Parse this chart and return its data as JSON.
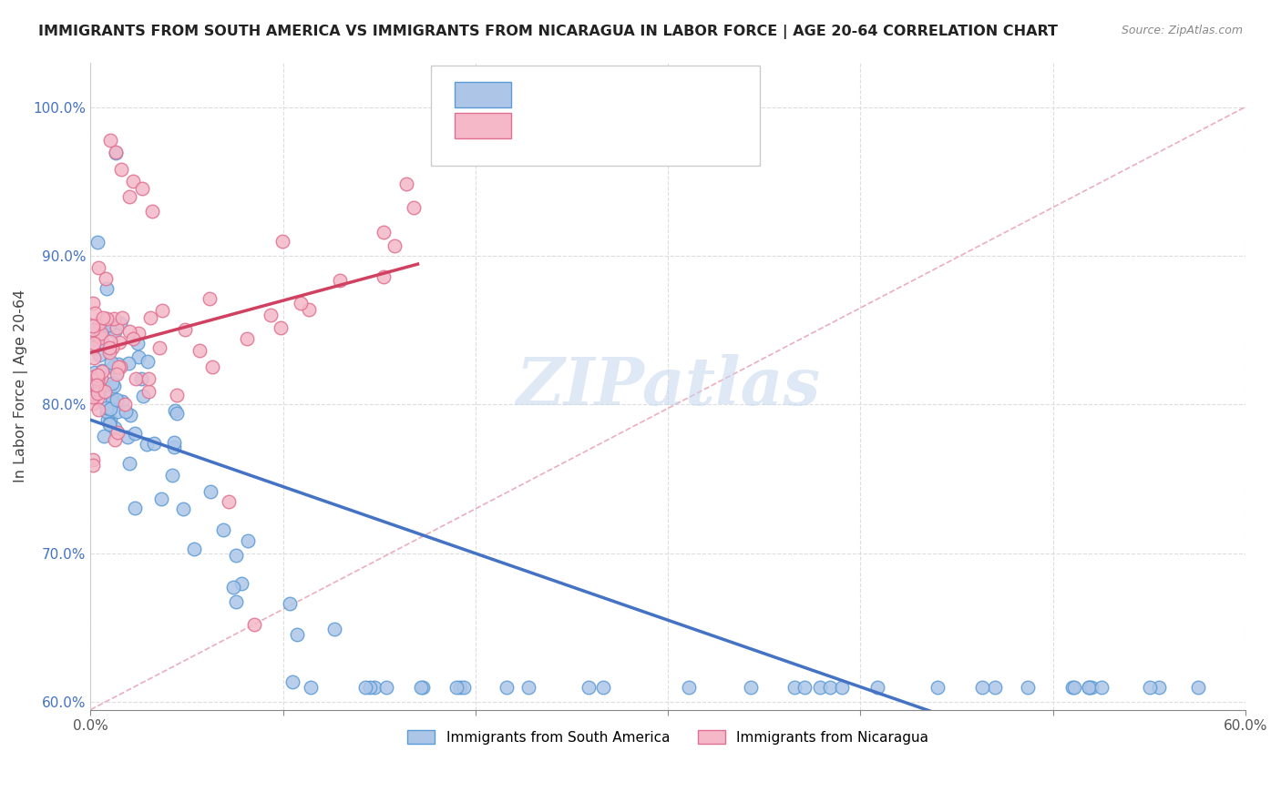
{
  "title": "IMMIGRANTS FROM SOUTH AMERICA VS IMMIGRANTS FROM NICARAGUA IN LABOR FORCE | AGE 20-64 CORRELATION CHART",
  "source": "Source: ZipAtlas.com",
  "ylabel": "In Labor Force | Age 20-64",
  "x_min": 0.0,
  "x_max": 0.6,
  "y_min": 0.595,
  "y_max": 1.03,
  "x_ticks": [
    0.0,
    0.1,
    0.2,
    0.3,
    0.4,
    0.5,
    0.6
  ],
  "x_tick_labels": [
    "0.0%",
    "",
    "",
    "",
    "",
    "",
    "60.0%"
  ],
  "y_ticks": [
    0.6,
    0.7,
    0.8,
    0.9,
    1.0
  ],
  "y_tick_labels": [
    "60.0%",
    "70.0%",
    "80.0%",
    "90.0%",
    "100.0%"
  ],
  "blue_color": "#adc6e8",
  "blue_edge_color": "#5b9bd5",
  "pink_color": "#f4b8c8",
  "pink_edge_color": "#e07090",
  "blue_line_color": "#4472c4",
  "pink_line_color": "#d04060",
  "dashed_line_color": "#e8a0b0",
  "legend_label_blue": "Immigrants from South America",
  "legend_label_pink": "Immigrants from Nicaragua",
  "watermark": "ZIPatlas"
}
